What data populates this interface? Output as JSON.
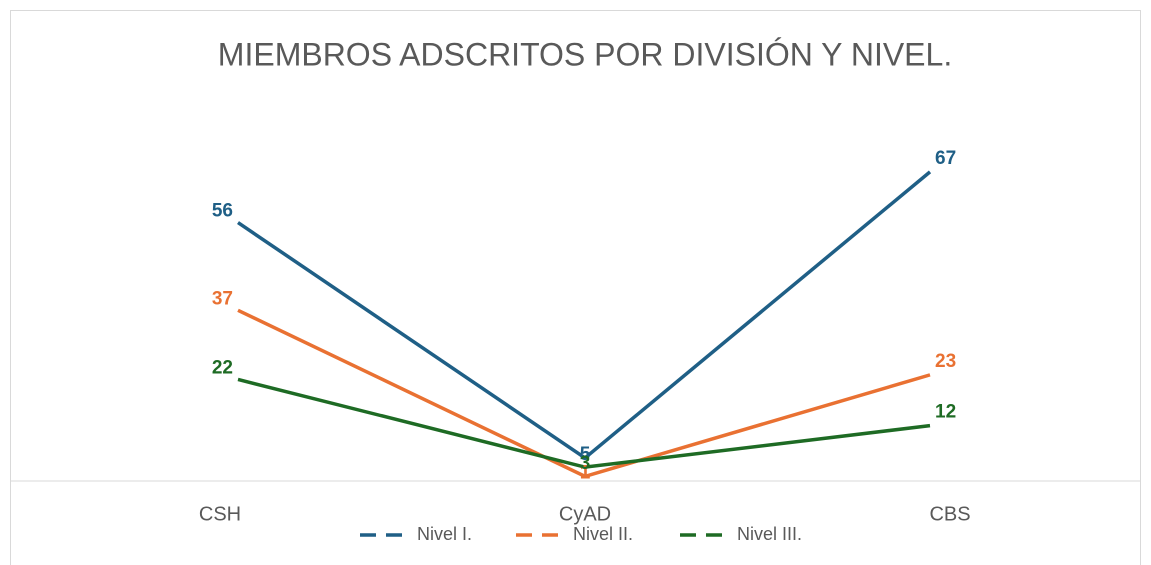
{
  "chart_data": {
    "type": "line",
    "title": "MIEMBROS ADSCRITOS POR DIVISIÓN Y NIVEL.",
    "categories": [
      "CSH",
      "CyAD",
      "CBS"
    ],
    "series": [
      {
        "name": "Nivel I.",
        "color": "#1f5f86",
        "values": [
          56,
          5,
          67
        ]
      },
      {
        "name": "Nivel II.",
        "color": "#e97132",
        "values": [
          37,
          1,
          23
        ]
      },
      {
        "name": "Nivel III.",
        "color": "#1e6b24",
        "values": [
          22,
          3,
          12
        ]
      }
    ],
    "ylim": [
      0,
      70
    ],
    "legend": "bottom"
  }
}
